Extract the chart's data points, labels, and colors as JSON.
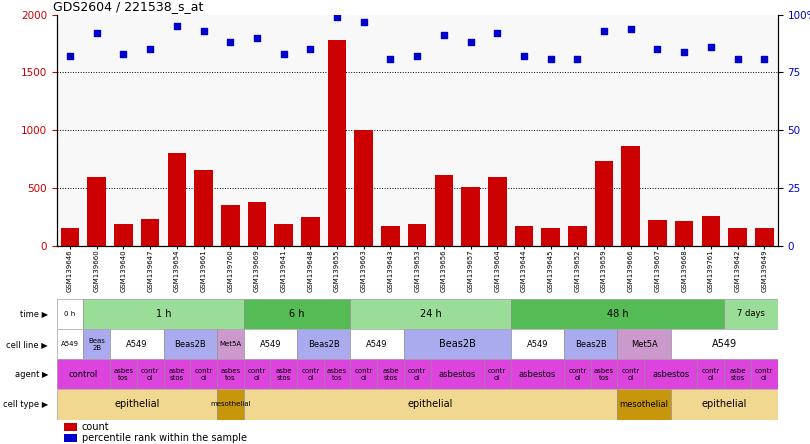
{
  "title": "GDS2604 / 221538_s_at",
  "samples": [
    "GSM139646",
    "GSM139660",
    "GSM139640",
    "GSM139647",
    "GSM139654",
    "GSM139661",
    "GSM139760",
    "GSM139669",
    "GSM139641",
    "GSM139648",
    "GSM139655",
    "GSM139663",
    "GSM139643",
    "GSM139653",
    "GSM139656",
    "GSM139657",
    "GSM139664",
    "GSM139644",
    "GSM139645",
    "GSM139652",
    "GSM139659",
    "GSM139666",
    "GSM139667",
    "GSM139668",
    "GSM139761",
    "GSM139642",
    "GSM139649"
  ],
  "counts": [
    150,
    590,
    190,
    230,
    800,
    650,
    350,
    380,
    185,
    245,
    1780,
    1005,
    165,
    185,
    615,
    510,
    595,
    170,
    155,
    165,
    730,
    860,
    225,
    215,
    255,
    155,
    155
  ],
  "percentiles": [
    82,
    92,
    83,
    85,
    95,
    93,
    88,
    90,
    83,
    85,
    99,
    97,
    81,
    82,
    91,
    88,
    92,
    82,
    81,
    81,
    93,
    94,
    85,
    84,
    86,
    81,
    81
  ],
  "ylim_left": [
    0,
    2000
  ],
  "ylim_right": [
    0,
    100
  ],
  "yticks_left": [
    0,
    500,
    1000,
    1500,
    2000
  ],
  "yticks_right": [
    0,
    25,
    50,
    75,
    100
  ],
  "ytick_labels_right": [
    "0",
    "25",
    "50",
    "75",
    "100%"
  ],
  "bar_color": "#cc0000",
  "dot_color": "#0000cc",
  "time_row": {
    "segments": [
      {
        "text": "0 h",
        "start": 0,
        "end": 1,
        "color": "#ffffff"
      },
      {
        "text": "1 h",
        "start": 1,
        "end": 7,
        "color": "#99dd99"
      },
      {
        "text": "6 h",
        "start": 7,
        "end": 11,
        "color": "#55bb55"
      },
      {
        "text": "24 h",
        "start": 11,
        "end": 17,
        "color": "#99dd99"
      },
      {
        "text": "48 h",
        "start": 17,
        "end": 25,
        "color": "#55bb55"
      },
      {
        "text": "7 days",
        "start": 25,
        "end": 27,
        "color": "#99dd99"
      }
    ]
  },
  "cellline_row": {
    "segments": [
      {
        "text": "A549",
        "start": 0,
        "end": 1,
        "color": "#ffffff"
      },
      {
        "text": "Beas\n2B",
        "start": 1,
        "end": 2,
        "color": "#aaaaee"
      },
      {
        "text": "A549",
        "start": 2,
        "end": 4,
        "color": "#ffffff"
      },
      {
        "text": "Beas2B",
        "start": 4,
        "end": 6,
        "color": "#aaaaee"
      },
      {
        "text": "Met5A",
        "start": 6,
        "end": 7,
        "color": "#cc99cc"
      },
      {
        "text": "A549",
        "start": 7,
        "end": 9,
        "color": "#ffffff"
      },
      {
        "text": "Beas2B",
        "start": 9,
        "end": 11,
        "color": "#aaaaee"
      },
      {
        "text": "A549",
        "start": 11,
        "end": 13,
        "color": "#ffffff"
      },
      {
        "text": "Beas2B",
        "start": 13,
        "end": 17,
        "color": "#aaaaee"
      },
      {
        "text": "A549",
        "start": 17,
        "end": 19,
        "color": "#ffffff"
      },
      {
        "text": "Beas2B",
        "start": 19,
        "end": 21,
        "color": "#aaaaee"
      },
      {
        "text": "Met5A",
        "start": 21,
        "end": 23,
        "color": "#cc99cc"
      },
      {
        "text": "A549",
        "start": 23,
        "end": 27,
        "color": "#ffffff"
      }
    ]
  },
  "agent_row": {
    "segments": [
      {
        "text": "control",
        "start": 0,
        "end": 2,
        "color": "#dd44dd"
      },
      {
        "text": "asbes\ntos",
        "start": 2,
        "end": 3,
        "color": "#dd44dd"
      },
      {
        "text": "contr\nol",
        "start": 3,
        "end": 4,
        "color": "#dd44dd"
      },
      {
        "text": "asbe\nstos",
        "start": 4,
        "end": 5,
        "color": "#dd44dd"
      },
      {
        "text": "contr\nol",
        "start": 5,
        "end": 6,
        "color": "#dd44dd"
      },
      {
        "text": "asbes\ntos",
        "start": 6,
        "end": 7,
        "color": "#dd44dd"
      },
      {
        "text": "contr\nol",
        "start": 7,
        "end": 8,
        "color": "#dd44dd"
      },
      {
        "text": "asbe\nstos",
        "start": 8,
        "end": 9,
        "color": "#dd44dd"
      },
      {
        "text": "contr\nol",
        "start": 9,
        "end": 10,
        "color": "#dd44dd"
      },
      {
        "text": "asbes\ntos",
        "start": 10,
        "end": 11,
        "color": "#dd44dd"
      },
      {
        "text": "contr\nol",
        "start": 11,
        "end": 12,
        "color": "#dd44dd"
      },
      {
        "text": "asbe\nstos",
        "start": 12,
        "end": 13,
        "color": "#dd44dd"
      },
      {
        "text": "contr\nol",
        "start": 13,
        "end": 14,
        "color": "#dd44dd"
      },
      {
        "text": "asbestos",
        "start": 14,
        "end": 16,
        "color": "#dd44dd"
      },
      {
        "text": "contr\nol",
        "start": 16,
        "end": 17,
        "color": "#dd44dd"
      },
      {
        "text": "asbestos",
        "start": 17,
        "end": 19,
        "color": "#dd44dd"
      },
      {
        "text": "contr\nol",
        "start": 19,
        "end": 20,
        "color": "#dd44dd"
      },
      {
        "text": "asbes\ntos",
        "start": 20,
        "end": 21,
        "color": "#dd44dd"
      },
      {
        "text": "contr\nol",
        "start": 21,
        "end": 22,
        "color": "#dd44dd"
      },
      {
        "text": "asbestos",
        "start": 22,
        "end": 24,
        "color": "#dd44dd"
      },
      {
        "text": "contr\nol",
        "start": 24,
        "end": 25,
        "color": "#dd44dd"
      },
      {
        "text": "asbe\nstos",
        "start": 25,
        "end": 26,
        "color": "#dd44dd"
      },
      {
        "text": "contr\nol",
        "start": 26,
        "end": 27,
        "color": "#dd44dd"
      }
    ]
  },
  "celltype_row": {
    "segments": [
      {
        "text": "epithelial",
        "start": 0,
        "end": 6,
        "color": "#f0d890"
      },
      {
        "text": "mesothelial",
        "start": 6,
        "end": 7,
        "color": "#c8960c"
      },
      {
        "text": "epithelial",
        "start": 7,
        "end": 21,
        "color": "#f0d890"
      },
      {
        "text": "mesothelial",
        "start": 21,
        "end": 23,
        "color": "#c8960c"
      },
      {
        "text": "epithelial",
        "start": 23,
        "end": 27,
        "color": "#f0d890"
      }
    ]
  },
  "row_labels": [
    "time",
    "cell line",
    "agent",
    "cell type"
  ],
  "legend_count_color": "#cc0000",
  "legend_dot_color": "#0000cc",
  "chart_bg": "#f8f8f8"
}
